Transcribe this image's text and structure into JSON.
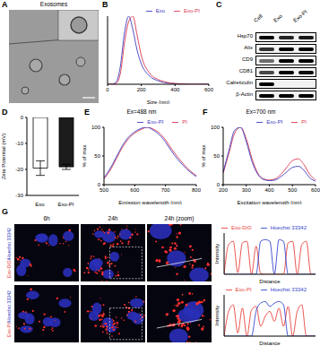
{
  "panel_labels": [
    "A",
    "B",
    "C",
    "D",
    "E",
    "F",
    "G"
  ],
  "tem": {
    "title": "Exosomes"
  },
  "blot": {
    "lanes": [
      "Cell",
      "Exo",
      "Exo-PI"
    ],
    "bands": [
      "Hsp70",
      "Alix",
      "CD9",
      "CD81",
      "Calreticulin",
      "β-Actin"
    ]
  },
  "confocal": {
    "columns": [
      "6h",
      "24h",
      "24h (zoom)"
    ],
    "rows": [
      {
        "probe": "Exo-DiO",
        "stain": "/Hoechst 33342"
      },
      {
        "probe": "Exo-PI",
        "stain": "/Hoechst 33342"
      }
    ]
  },
  "chart_data": [
    {
      "type": "line",
      "xlabel": "Size (nm)",
      "x": [
        0,
        25,
        50,
        75,
        100,
        125,
        150,
        175,
        200,
        250,
        300,
        350,
        400,
        500,
        600
      ],
      "xlim": [
        0,
        600
      ],
      "xticks": [
        0,
        200,
        400,
        600
      ],
      "ylim": [
        0,
        100
      ],
      "tick_labels": "x",
      "legend": "upper right",
      "series": [
        {
          "name": "Exo",
          "color": "#3b3bbf",
          "values": [
            0,
            0,
            3,
            25,
            75,
            100,
            80,
            50,
            30,
            12,
            5,
            2,
            1,
            0,
            0
          ]
        },
        {
          "name": "Exo-PI",
          "color": "#d9364f",
          "values": [
            0,
            0,
            1,
            15,
            60,
            92,
            100,
            72,
            42,
            16,
            7,
            3,
            1,
            0,
            0
          ]
        }
      ]
    },
    {
      "type": "bar",
      "ylabel": "Zeta Potential (mV)",
      "categories": [
        "Exo",
        "Exo-PI"
      ],
      "values": [
        -19.5,
        -19
      ],
      "errors": [
        2.8,
        1.0
      ],
      "colors": [
        "#ffffff",
        "#1c1c1c"
      ],
      "ylim": [
        -30,
        0
      ],
      "yticks": [
        -30,
        -20,
        -10,
        0
      ]
    },
    {
      "type": "line",
      "title": "Ex=488 nm",
      "xlabel": "Emission wavelength (nm)",
      "ylabel": "% of max",
      "x": [
        500,
        520,
        540,
        560,
        580,
        600,
        620,
        640,
        660,
        680,
        700,
        720,
        740,
        760,
        780,
        800
      ],
      "xlim": [
        500,
        800
      ],
      "xticks": [
        500,
        600,
        700,
        800
      ],
      "ylim": [
        0,
        100
      ],
      "yticks": [
        0,
        50,
        100
      ],
      "legend": "upper right",
      "series": [
        {
          "name": "PI",
          "color": "#d9364f",
          "values": [
            10,
            25,
            45,
            65,
            80,
            90,
            96,
            100,
            97,
            90,
            78,
            62,
            48,
            35,
            24,
            16
          ]
        },
        {
          "name": "Exo-PI",
          "color": "#3b3bbf",
          "values": [
            12,
            28,
            48,
            68,
            83,
            92,
            98,
            100,
            95,
            87,
            74,
            58,
            44,
            32,
            22,
            14
          ]
        }
      ]
    },
    {
      "type": "line",
      "title": "Ex=700 nm",
      "xlabel": "Excitation wavelength (nm)",
      "ylabel": "% of max",
      "x": [
        200,
        225,
        250,
        275,
        300,
        325,
        350,
        375,
        400,
        425,
        450,
        475,
        500,
        525,
        550,
        575,
        600
      ],
      "xlim": [
        200,
        600
      ],
      "xticks": [
        200,
        300,
        400,
        500,
        600
      ],
      "ylim": [
        0,
        100
      ],
      "yticks": [
        0,
        50,
        100
      ],
      "legend": "upper right",
      "series": [
        {
          "name": "PI",
          "color": "#d9364f",
          "values": [
            20,
            55,
            90,
            100,
            80,
            45,
            20,
            10,
            8,
            10,
            18,
            30,
            42,
            45,
            35,
            18,
            8
          ]
        },
        {
          "name": "Exo-PI",
          "color": "#3b3bbf",
          "values": [
            22,
            60,
            95,
            100,
            75,
            40,
            18,
            9,
            7,
            8,
            14,
            22,
            30,
            32,
            25,
            12,
            6
          ]
        }
      ]
    },
    {
      "type": "line",
      "xlabel": "Distance",
      "ylabel": "Intensity",
      "x": [
        0,
        20,
        40,
        60,
        80,
        100,
        120,
        140,
        160,
        180,
        200,
        220,
        240,
        260,
        280,
        300,
        320,
        340,
        360,
        380,
        400
      ],
      "xlim": [
        0,
        400
      ],
      "ylim": [
        0,
        250
      ],
      "tick_labels": false,
      "legend": "upper right",
      "series": [
        {
          "name": "Exo-DiO",
          "color": "#e8403a",
          "values": [
            0,
            180,
            200,
            10,
            190,
            200,
            0,
            170,
            5,
            0,
            0,
            0,
            0,
            0,
            190,
            200,
            0,
            180,
            200,
            0,
            0
          ]
        },
        {
          "name": "Hoechst 33342",
          "color": "#3344cc",
          "values": [
            0,
            0,
            0,
            0,
            0,
            0,
            0,
            0,
            200,
            210,
            200,
            0,
            210,
            200,
            0,
            0,
            0,
            0,
            0,
            0,
            0
          ]
        }
      ]
    },
    {
      "type": "line",
      "xlabel": "Distance",
      "ylabel": "Intensity",
      "x": [
        0,
        20,
        40,
        60,
        80,
        100,
        120,
        140,
        160,
        180,
        200,
        220,
        240,
        260,
        280,
        300,
        320,
        340,
        360,
        380,
        400
      ],
      "xlim": [
        0,
        400
      ],
      "ylim": [
        0,
        250
      ],
      "tick_labels": false,
      "legend": "upper right",
      "series": [
        {
          "name": "Exo-PI",
          "color": "#e8403a",
          "values": [
            0,
            150,
            190,
            20,
            170,
            0,
            160,
            180,
            60,
            120,
            150,
            90,
            170,
            60,
            180,
            0,
            150,
            190,
            0,
            0,
            0
          ]
        },
        {
          "name": "Hoechst 33342",
          "color": "#3344cc",
          "values": [
            0,
            0,
            0,
            0,
            0,
            0,
            0,
            150,
            200,
            210,
            180,
            200,
            210,
            190,
            0,
            0,
            0,
            0,
            0,
            0,
            0
          ]
        }
      ]
    }
  ]
}
